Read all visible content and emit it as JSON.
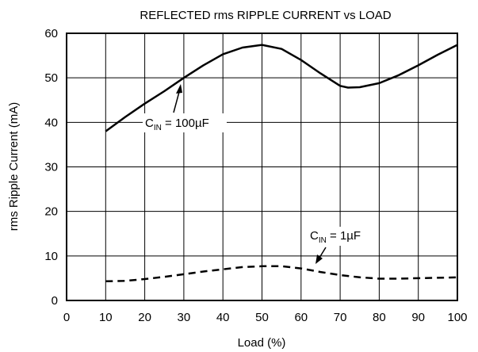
{
  "chart_data": {
    "type": "line",
    "title": "REFLECTED rms RIPPLE CURRENT vs LOAD",
    "xlabel": "Load (%)",
    "ylabel": "rms Ripple Current (mA)",
    "xlim": [
      0,
      100
    ],
    "ylim": [
      0,
      60
    ],
    "xticks": [
      0,
      10,
      20,
      30,
      40,
      50,
      60,
      70,
      80,
      90,
      100
    ],
    "yticks": [
      0,
      10,
      20,
      30,
      40,
      50,
      60
    ],
    "grid": true,
    "series": [
      {
        "name": "C_IN = 100µF",
        "style": "solid",
        "x": [
          10,
          15,
          20,
          25,
          30,
          35,
          40,
          45,
          50,
          55,
          60,
          65,
          70,
          72,
          75,
          80,
          85,
          90,
          95,
          100
        ],
        "y": [
          38,
          41.2,
          44.2,
          47,
          50,
          52.8,
          55.3,
          56.8,
          57.4,
          56.5,
          54,
          51,
          48.2,
          47.8,
          47.9,
          48.8,
          50.6,
          52.8,
          55.2,
          57.4
        ]
      },
      {
        "name": "C_IN = 1µF",
        "style": "dashed",
        "x": [
          10,
          15,
          20,
          25,
          30,
          35,
          40,
          45,
          50,
          55,
          60,
          65,
          70,
          75,
          80,
          85,
          90,
          95,
          100
        ],
        "y": [
          4.3,
          4.4,
          4.8,
          5.3,
          5.9,
          6.5,
          7.0,
          7.5,
          7.7,
          7.7,
          7.2,
          6.4,
          5.7,
          5.2,
          4.9,
          4.9,
          5.0,
          5.1,
          5.2
        ]
      }
    ],
    "annotations": [
      {
        "series": 0,
        "main": "C",
        "sub": "IN",
        "rest": " = 100µF"
      },
      {
        "series": 1,
        "main": "C",
        "sub": "IN",
        "rest": " = 1µF"
      }
    ]
  }
}
